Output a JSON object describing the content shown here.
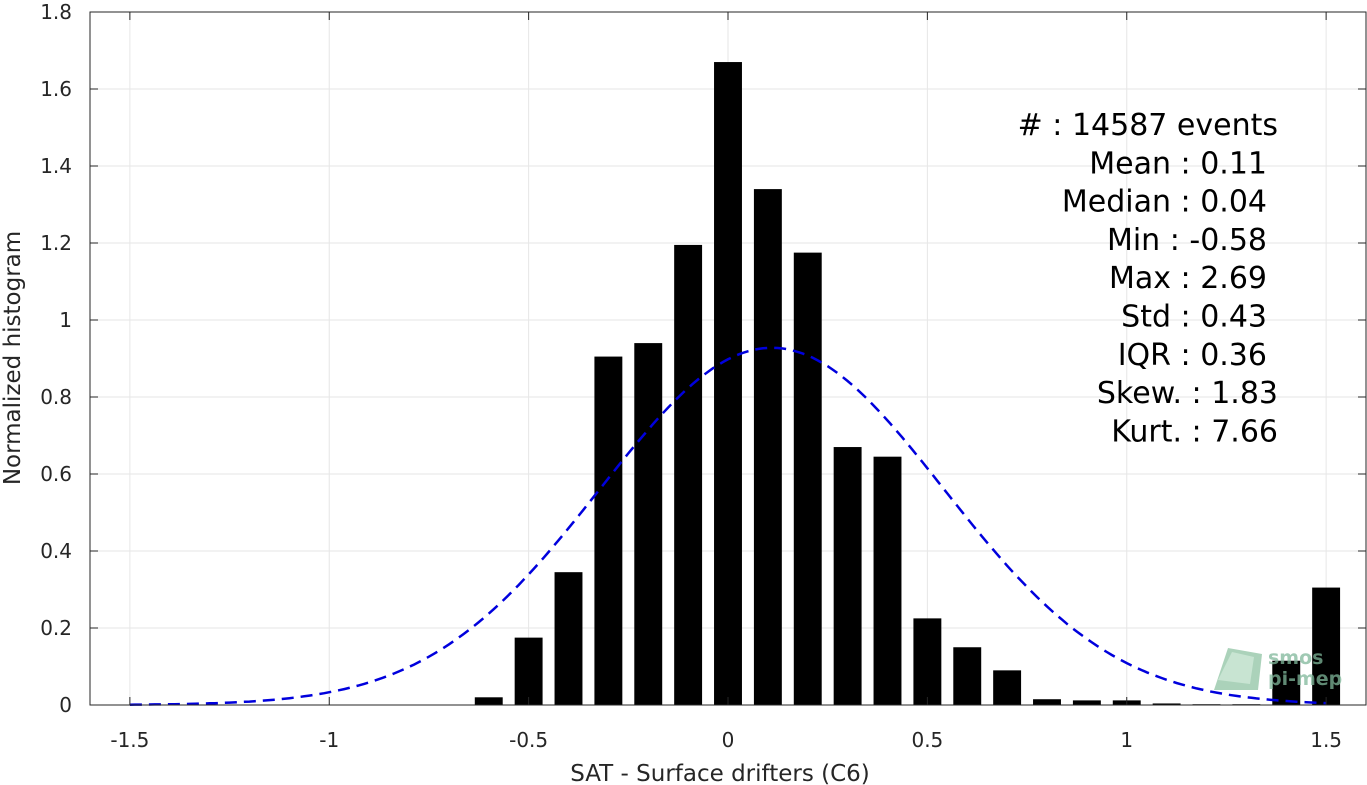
{
  "chart_data": {
    "type": "bar",
    "xlabel": "SAT - Surface drifters (C6)",
    "ylabel": "Normalized histogram",
    "xlim": [
      -1.6,
      1.6
    ],
    "ylim": [
      0,
      1.8
    ],
    "xticks": [
      -1.5,
      -1,
      -0.5,
      0,
      0.5,
      1,
      1.5
    ],
    "xtick_labels": [
      "-1.5",
      "-1",
      "-0.5",
      "0",
      "0.5",
      "1",
      "1.5"
    ],
    "yticks": [
      0,
      0.2,
      0.4,
      0.6,
      0.8,
      1,
      1.2,
      1.4,
      1.6,
      1.8
    ],
    "ytick_labels": [
      "0",
      "0.2",
      "0.4",
      "0.6",
      "0.8",
      "1",
      "1.2",
      "1.4",
      "1.6",
      "1.8"
    ],
    "grid": true,
    "bar_color": "#000000",
    "bar_width": 0.07,
    "bins": [
      {
        "x": -0.6,
        "value": 0.02
      },
      {
        "x": -0.5,
        "value": 0.175
      },
      {
        "x": -0.4,
        "value": 0.345
      },
      {
        "x": -0.3,
        "value": 0.905
      },
      {
        "x": -0.2,
        "value": 0.94
      },
      {
        "x": -0.1,
        "value": 1.195
      },
      {
        "x": 0.0,
        "value": 1.67
      },
      {
        "x": 0.1,
        "value": 1.34
      },
      {
        "x": 0.2,
        "value": 1.175
      },
      {
        "x": 0.3,
        "value": 0.67
      },
      {
        "x": 0.4,
        "value": 0.645
      },
      {
        "x": 0.5,
        "value": 0.225
      },
      {
        "x": 0.6,
        "value": 0.15
      },
      {
        "x": 0.7,
        "value": 0.09
      },
      {
        "x": 0.8,
        "value": 0.015
      },
      {
        "x": 0.9,
        "value": 0.012
      },
      {
        "x": 1.0,
        "value": 0.012
      },
      {
        "x": 1.1,
        "value": 0.004
      },
      {
        "x": 1.2,
        "value": 0.002
      },
      {
        "x": 1.3,
        "value": 0.002
      },
      {
        "x": 1.4,
        "value": 0.115
      },
      {
        "x": 1.5,
        "value": 0.305
      }
    ],
    "fit_curve": {
      "style": "dashed",
      "color": "#0000dd",
      "mean": 0.11,
      "std": 0.43,
      "x_range": [
        -1.5,
        1.5
      ]
    },
    "annotations": [
      "#  : 14587 events",
      "Mean : 0.11",
      "Median : 0.04",
      "Min : -0.58",
      "Max : 2.69",
      "Std : 0.43",
      "IQR : 0.36",
      "Skew. : 1.83",
      "Kurt. : 7.66"
    ]
  },
  "logo": {
    "line1": "smos",
    "line2": "pi-mep",
    "color": "#7fb79a"
  }
}
